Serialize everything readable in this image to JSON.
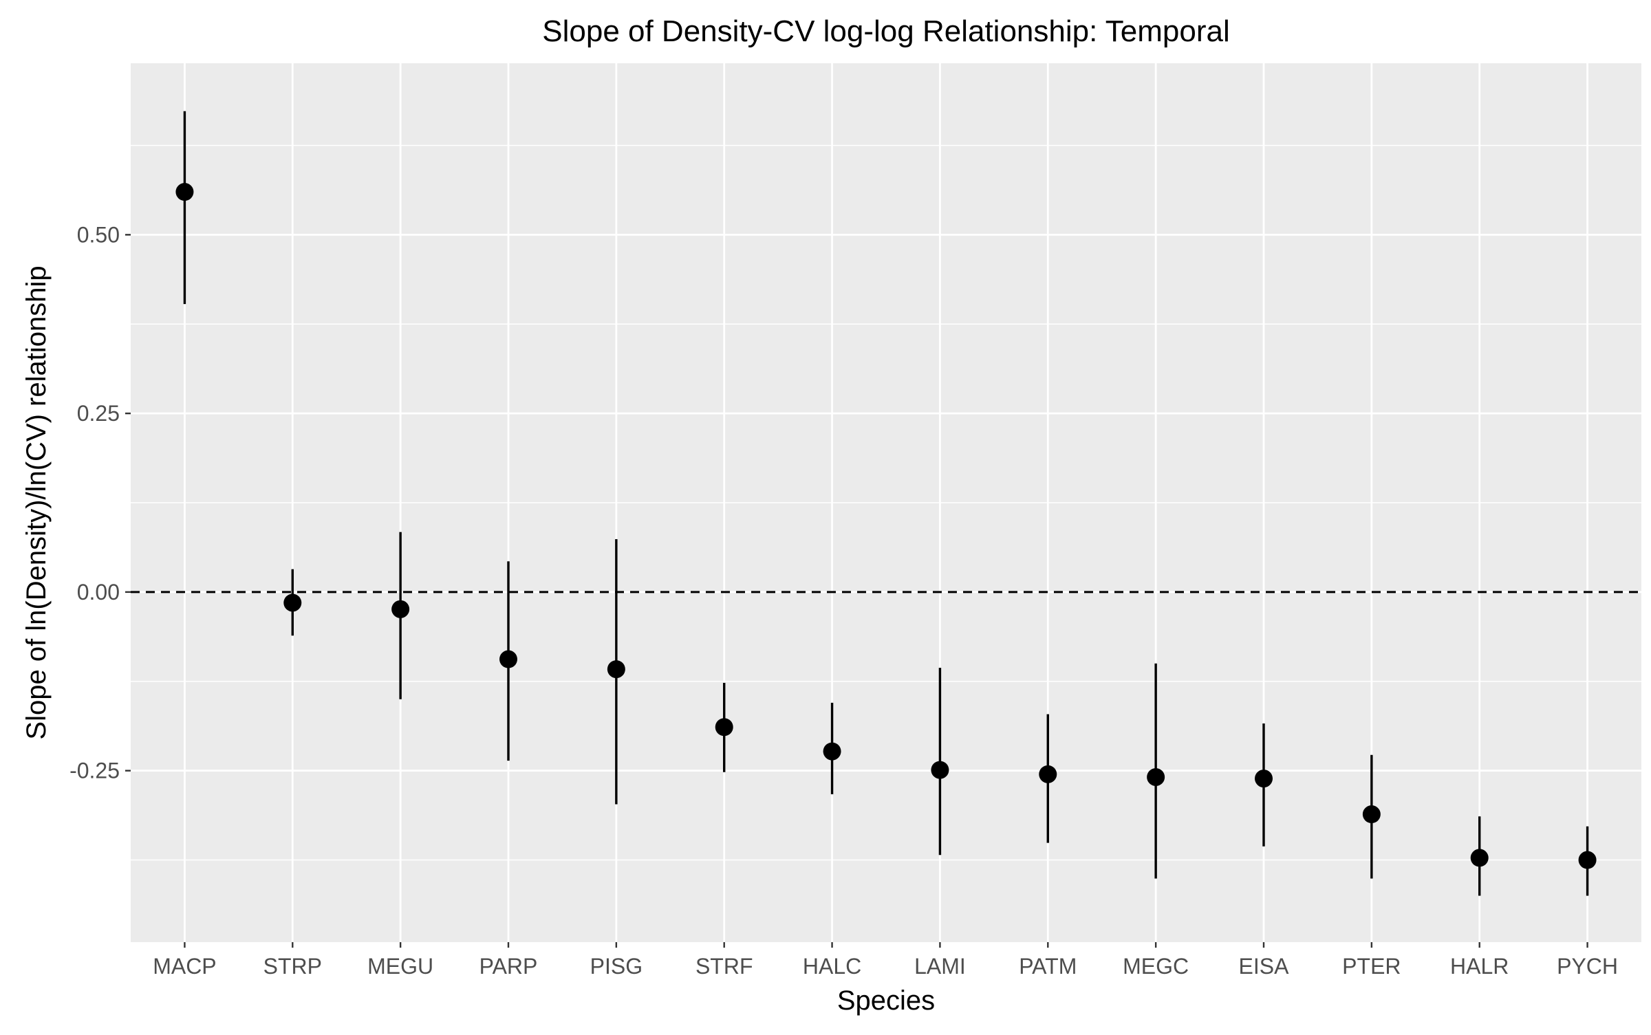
{
  "chart_data": {
    "type": "pointrange",
    "title": "Slope of Density-CV log-log Relationship: Temporal",
    "xlabel": "Species",
    "ylabel": "Slope of ln(Density)/ln(CV) relationship",
    "ylim": [
      -0.49,
      0.74
    ],
    "y_ticks": [
      0.5,
      0.25,
      0.0,
      -0.25
    ],
    "y_tick_labels": [
      "0.50",
      "0.25",
      "0.00",
      "-0.25"
    ],
    "reference_line": {
      "y": 0.0,
      "style": "dashed"
    },
    "grid": true,
    "categories": [
      "MACP",
      "STRP",
      "MEGU",
      "PARP",
      "PISG",
      "STRF",
      "HALC",
      "LAMI",
      "PATM",
      "MEGC",
      "EISA",
      "PTER",
      "HALR",
      "PYCH"
    ],
    "estimate": [
      0.56,
      -0.015,
      -0.024,
      -0.094,
      -0.108,
      -0.189,
      -0.223,
      -0.249,
      -0.255,
      -0.259,
      -0.261,
      -0.311,
      -0.372,
      -0.375
    ],
    "lower": [
      0.403,
      -0.061,
      -0.15,
      -0.236,
      -0.297,
      -0.252,
      -0.283,
      -0.368,
      -0.351,
      -0.401,
      -0.356,
      -0.401,
      -0.425,
      -0.425
    ],
    "upper": [
      0.673,
      0.032,
      0.084,
      0.043,
      0.074,
      -0.127,
      -0.155,
      -0.106,
      -0.171,
      -0.1,
      -0.184,
      -0.228,
      -0.314,
      -0.328
    ],
    "colors": {
      "panel_background": "#ebebeb",
      "grid_line": "#ffffff",
      "point": "#000000",
      "axis_text": "#4d4d4d",
      "title_text": "#000000"
    }
  }
}
